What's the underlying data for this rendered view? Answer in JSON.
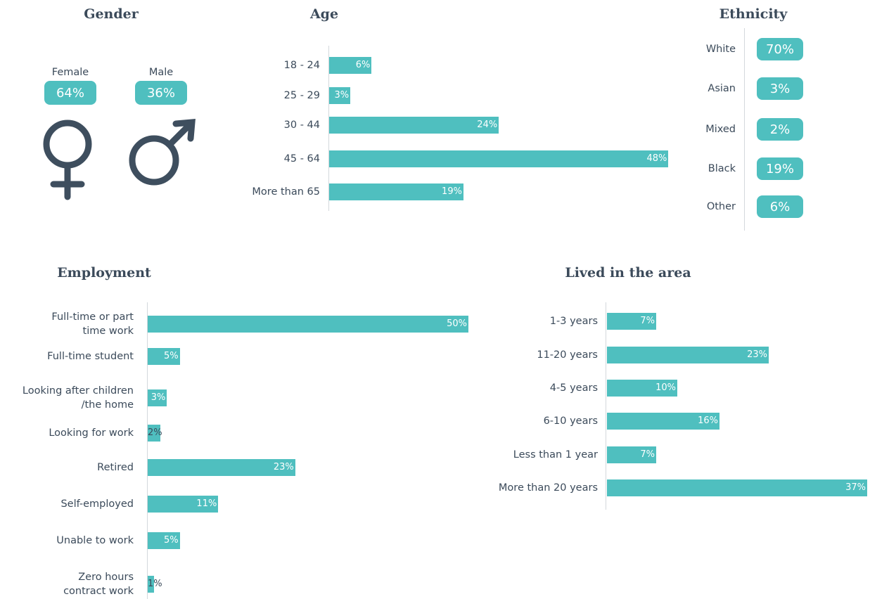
{
  "chart_data": [
    {
      "type": "badges",
      "title": "Gender",
      "categories": [
        "Female",
        "Male"
      ],
      "values": [
        64,
        36
      ],
      "value_labels": [
        "64%",
        "36%"
      ],
      "color": "#4fbfbf"
    },
    {
      "type": "bar",
      "title": "Age",
      "categories": [
        "18 - 24",
        "25 - 29",
        "30 - 44",
        "45 - 64",
        "More than 65"
      ],
      "values": [
        6,
        3,
        24,
        48,
        19
      ],
      "value_labels": [
        "6%",
        "3%",
        "24%",
        "48%",
        "19%"
      ],
      "color": "#4fbfbf"
    },
    {
      "type": "badges",
      "title": "Ethnicity",
      "categories": [
        "White",
        "Asian",
        "Mixed",
        "Black",
        "Other"
      ],
      "values": [
        70,
        3,
        2,
        19,
        6
      ],
      "value_labels": [
        "70%",
        "3%",
        "2%",
        "19%",
        "6%"
      ],
      "color": "#4fbfbf"
    },
    {
      "type": "bar",
      "title": "Employment",
      "categories": [
        "Full-time or part\ntime work",
        "Full-time student",
        "Looking after children\n/the home",
        "Looking for work",
        "Retired",
        "Self-employed",
        "Unable to work",
        "Zero hours\ncontract work"
      ],
      "values": [
        50,
        5,
        3,
        2,
        23,
        11,
        5,
        1
      ],
      "value_labels": [
        "50%",
        "5%",
        "3%",
        "2%",
        "23%",
        "11%",
        "5%",
        "1%"
      ],
      "color": "#4fbfbf"
    },
    {
      "type": "bar",
      "title": "Lived in the area",
      "categories": [
        "1-3 years",
        "11-20 years",
        "4-5 years",
        "6-10 years",
        "Less than 1 year",
        "More than 20 years"
      ],
      "values": [
        7,
        23,
        10,
        16,
        7,
        37
      ],
      "value_labels": [
        "7%",
        "23%",
        "10%",
        "16%",
        "7%",
        "37%"
      ],
      "color": "#4fbfbf"
    }
  ]
}
